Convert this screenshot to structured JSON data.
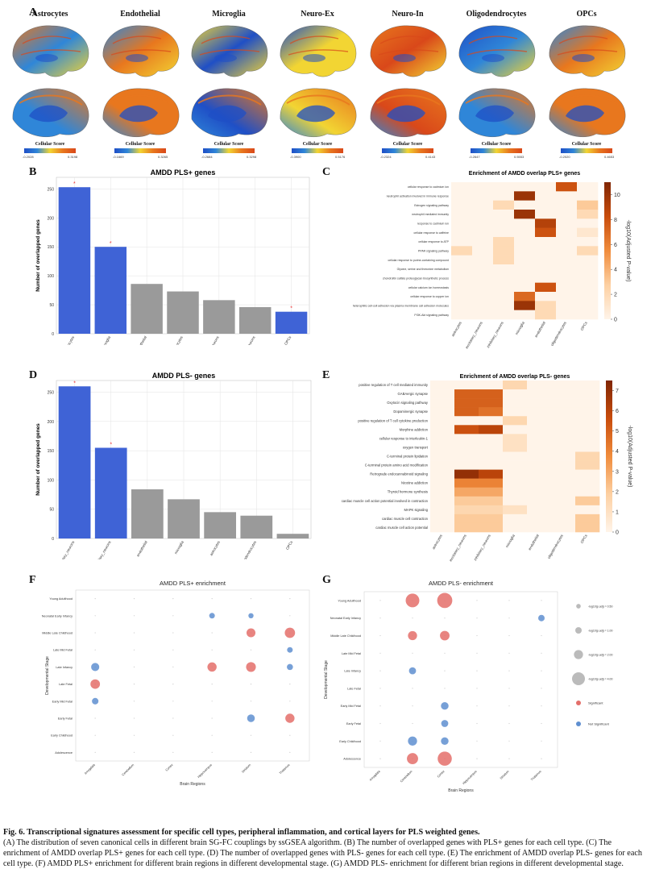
{
  "panel_letters": [
    "A",
    "B",
    "C",
    "D",
    "E",
    "F",
    "G"
  ],
  "panelA": {
    "cells": [
      {
        "name": "Astrocytes",
        "min": "-0.2028",
        "max": "0.3198"
      },
      {
        "name": "Endothelial",
        "min": "-0.1669",
        "max": "0.3265"
      },
      {
        "name": "Microglia",
        "min": "-0.2684",
        "max": "0.3298"
      },
      {
        "name": "Neuro-Ex",
        "min": "-0.3900",
        "max": "0.5176"
      },
      {
        "name": "Neuro-In",
        "min": "-0.2324",
        "max": "0.4143"
      },
      {
        "name": "Oligodendrocytes",
        "min": "-0.2647",
        "max": "0.5553"
      },
      {
        "name": "OPCs",
        "min": "-0.2020",
        "max": "0.4653"
      }
    ],
    "colorbar_label": "Cellular Score",
    "colors": [
      "#1f4fc6",
      "#2f86d8",
      "#f2d533",
      "#e8771e",
      "#d9481a"
    ]
  },
  "chart_data": [
    {
      "id": "B",
      "type": "bar",
      "title": "AMDD PLS+ genes",
      "ylabel": "Number of overlapped genes",
      "categories": [
        "astrocytes",
        "microglia",
        "endothelial",
        "oligodendrocytes",
        "inhibitory_neurons",
        "excitatory_neurons",
        "OPCs"
      ],
      "values": [
        253,
        150,
        86,
        73,
        58,
        46,
        38
      ],
      "significant": [
        true,
        true,
        false,
        false,
        false,
        false,
        true
      ],
      "ylim": [
        0,
        270
      ],
      "yticks": [
        0,
        50,
        100,
        150,
        200,
        250
      ],
      "grid": true
    },
    {
      "id": "D",
      "type": "bar",
      "title": "AMDD PLS- genes",
      "ylabel": "Number of overlapped genes",
      "categories": [
        "excitatory_neurons",
        "inhibitory_neurons",
        "endothelial",
        "microglia",
        "astrocytes",
        "oligodendrocytes",
        "OPCs"
      ],
      "values": [
        260,
        155,
        84,
        67,
        45,
        39,
        8
      ],
      "significant": [
        true,
        true,
        false,
        false,
        false,
        false,
        false
      ],
      "ylim": [
        0,
        270
      ],
      "yticks": [
        0,
        50,
        100,
        150,
        200,
        250
      ],
      "grid": true
    },
    {
      "id": "C",
      "type": "heatmap",
      "title": "Enrichment of AMDD overlap PLS+ genes",
      "colorbar_label": "-log10(Adjusted P-value)",
      "vmin": 0,
      "vmax": 11,
      "cticks": [
        0,
        2,
        4,
        6,
        8,
        10
      ],
      "columns": [
        "astrocytes",
        "excitatory_neurons",
        "inhibitory_neurons",
        "microglia",
        "endothelial",
        "oligodendrocytes",
        "OPCs"
      ],
      "rows": [
        "cellular response to cadmium ion",
        "neutrophil activation involved in immune response",
        "Estrogen signaling pathway",
        "neutrophil mediated immunity",
        "response to cadmium ion",
        "cellular response to caffeine",
        "cellular response to ATP",
        "PPAR signaling pathway",
        "cellular response to purine-containing compound",
        "Glycine, serine and threonine metabolism",
        "chondroitin sulfate proteoglycan biosynthetic process",
        "cellular calcium ion homeostasis",
        "cellular response to copper ion",
        "heterophilic cell-cell adhesion via plasma membrane cell adhesion molecules",
        "PI3K-Akt signaling pathway"
      ],
      "values": [
        [
          0,
          0,
          0,
          0,
          0,
          8,
          0
        ],
        [
          0,
          0,
          0,
          10,
          0,
          0,
          0
        ],
        [
          0,
          0,
          2,
          0,
          0,
          0,
          3
        ],
        [
          0,
          0,
          0,
          10,
          0,
          0,
          2
        ],
        [
          0,
          0,
          0,
          0,
          9,
          0,
          0
        ],
        [
          0,
          0,
          0,
          0,
          8,
          0,
          1
        ],
        [
          0,
          0,
          2,
          0,
          0,
          0,
          0
        ],
        [
          2,
          0,
          2,
          0,
          0,
          0,
          2
        ],
        [
          0,
          0,
          2,
          0,
          0,
          0,
          0
        ],
        [
          0,
          0,
          0,
          0,
          0,
          0,
          0
        ],
        [
          0,
          0,
          0,
          0,
          0,
          0,
          0
        ],
        [
          0,
          0,
          0,
          0,
          8,
          0,
          0
        ],
        [
          0,
          0,
          0,
          7,
          0,
          0,
          0
        ],
        [
          0,
          0,
          0,
          10,
          2,
          0,
          0
        ],
        [
          0,
          0,
          0,
          0,
          2,
          0,
          0
        ]
      ]
    },
    {
      "id": "E",
      "type": "heatmap",
      "title": "Enrichment of AMDD overlap PLS- genes",
      "colorbar_label": "-log10(Adjusted P-value)",
      "vmin": 0,
      "vmax": 7.5,
      "cticks": [
        0,
        1,
        2,
        3,
        4,
        5,
        6,
        7
      ],
      "columns": [
        "astrocytes",
        "excitatory_neurons",
        "inhibitory_neurons",
        "microglia",
        "endothelial",
        "oligodendrocytes",
        "OPCs"
      ],
      "rows": [
        "positive regulation of T cell mediated immunity",
        "GABAergic synapse",
        "Oxytocin signaling pathway",
        "Dopaminergic synapse",
        "positive regulation of T cell cytokine production",
        "Morphine addiction",
        "cellular response to interleukin-1",
        "oxygen transport",
        "C-terminal protein lipidation",
        "C-terminal protein amino acid modification",
        "Retrograde endocannabinoid signaling",
        "Nicotine addiction",
        "Thyroid hormone synthesis",
        "cardiac muscle cell action potential involved in contraction",
        "MAPK signaling",
        "cardiac muscle cell contraction",
        "cardiac muscle cell action potential"
      ],
      "values": [
        [
          0,
          0,
          0,
          1.5,
          0,
          0,
          0
        ],
        [
          0,
          5,
          5,
          0,
          0,
          0,
          0
        ],
        [
          0,
          5,
          5,
          0,
          0,
          0,
          0
        ],
        [
          0,
          5,
          4.5,
          0,
          0,
          0,
          0
        ],
        [
          0,
          0,
          0,
          1.5,
          0,
          0,
          0
        ],
        [
          0,
          5.5,
          6,
          0,
          0,
          0,
          0
        ],
        [
          0,
          0,
          0,
          1,
          0,
          0,
          0
        ],
        [
          0,
          0,
          0,
          1,
          0,
          0,
          0
        ],
        [
          0,
          0,
          0,
          0,
          0,
          0,
          1.5
        ],
        [
          0,
          0,
          0,
          0,
          0,
          0,
          1.5
        ],
        [
          0,
          7,
          6,
          0,
          0,
          0,
          0
        ],
        [
          0,
          4,
          4,
          0,
          0,
          0,
          0
        ],
        [
          0,
          3,
          3,
          0,
          0,
          0,
          0
        ],
        [
          0,
          2,
          2,
          0,
          0,
          0,
          2
        ],
        [
          0,
          1.5,
          1.5,
          1,
          0,
          0,
          0
        ],
        [
          0,
          2,
          2,
          0,
          0,
          0,
          2
        ],
        [
          0,
          2,
          2,
          0,
          0,
          0,
          2
        ]
      ]
    },
    {
      "id": "F",
      "type": "scatter",
      "title": "AMDD PLS+ enrichment",
      "xlabel": "Brain Regions",
      "ylabel": "Developmental Stage",
      "x_categories": [
        "Amygdala",
        "Cerebellum",
        "Cortex",
        "Hippocampus",
        "Striatum",
        "Thalamus"
      ],
      "y_categories": [
        "Young Adulthood",
        "Neonatal Early Infancy",
        "Middle Late Childhood",
        "Late Mid Fetal",
        "Late Infancy",
        "Late Fetal",
        "Early Mid Fetal",
        "Early Fetal",
        "Early Childhood",
        "Adolescence"
      ],
      "points": [
        {
          "x": "Hippocampus",
          "y": "Neonatal Early Infancy",
          "size": 1.2,
          "sig": false
        },
        {
          "x": "Striatum",
          "y": "Neonatal Early Infancy",
          "size": 1.0,
          "sig": false
        },
        {
          "x": "Striatum",
          "y": "Middle Late Childhood",
          "size": 3.0,
          "sig": true
        },
        {
          "x": "Thalamus",
          "y": "Middle Late Childhood",
          "size": 4.0,
          "sig": true
        },
        {
          "x": "Thalamus",
          "y": "Late Mid Fetal",
          "size": 1.2,
          "sig": false
        },
        {
          "x": "Amygdala",
          "y": "Late Infancy",
          "size": 2.5,
          "sig": false
        },
        {
          "x": "Hippocampus",
          "y": "Late Infancy",
          "size": 3.2,
          "sig": true
        },
        {
          "x": "Striatum",
          "y": "Late Infancy",
          "size": 3.6,
          "sig": true
        },
        {
          "x": "Thalamus",
          "y": "Late Infancy",
          "size": 1.4,
          "sig": false
        },
        {
          "x": "Amygdala",
          "y": "Late Fetal",
          "size": 3.4,
          "sig": true
        },
        {
          "x": "Amygdala",
          "y": "Early Mid Fetal",
          "size": 1.6,
          "sig": false
        },
        {
          "x": "Striatum",
          "y": "Early Fetal",
          "size": 2.2,
          "sig": false
        },
        {
          "x": "Thalamus",
          "y": "Early Fetal",
          "size": 3.2,
          "sig": true
        }
      ]
    },
    {
      "id": "G",
      "type": "scatter",
      "title": "AMDD PLS- enrichment",
      "xlabel": "Brain Regions",
      "ylabel": "Developmental Stage",
      "x_categories": [
        "Amygdala",
        "Cerebellum",
        "Cortex",
        "Hippocampus",
        "Striatum",
        "Thalamus"
      ],
      "y_categories": [
        "Young Adulthood",
        "Neonatal Early Infancy",
        "Middle Late Childhood",
        "Late Mid Fetal",
        "Late Infancy",
        "Late Fetal",
        "Early Mid Fetal",
        "Early Fetal",
        "Early Childhood",
        "Adolescence"
      ],
      "points": [
        {
          "x": "Cerebellum",
          "y": "Young Adulthood",
          "size": 4.5,
          "sig": true
        },
        {
          "x": "Cortex",
          "y": "Young Adulthood",
          "size": 5.5,
          "sig": true
        },
        {
          "x": "Thalamus",
          "y": "Neonatal Early Infancy",
          "size": 1.0,
          "sig": false
        },
        {
          "x": "Cerebellum",
          "y": "Middle Late Childhood",
          "size": 2.0,
          "sig": true
        },
        {
          "x": "Cortex",
          "y": "Middle Late Childhood",
          "size": 2.2,
          "sig": true
        },
        {
          "x": "Cerebellum",
          "y": "Late Infancy",
          "size": 1.2,
          "sig": false
        },
        {
          "x": "Cortex",
          "y": "Early Mid Fetal",
          "size": 1.4,
          "sig": false
        },
        {
          "x": "Cortex",
          "y": "Early Fetal",
          "size": 1.2,
          "sig": false
        },
        {
          "x": "Cerebellum",
          "y": "Early Childhood",
          "size": 2.0,
          "sig": false
        },
        {
          "x": "Cortex",
          "y": "Early Childhood",
          "size": 1.4,
          "sig": false
        },
        {
          "x": "Cerebellum",
          "y": "Adolescence",
          "size": 3.0,
          "sig": true
        },
        {
          "x": "Cortex",
          "y": "Adolescence",
          "size": 4.8,
          "sig": true
        }
      ],
      "legend": [
        {
          "label": "-log10(p.adj) = 0.50",
          "size": 0.5
        },
        {
          "label": "-log10(p.adj) = 1.00",
          "size": 1.0
        },
        {
          "label": "-log10(p.adj) = 2.00",
          "size": 2.0
        },
        {
          "label": "-log10(p.adj) = 4.00",
          "size": 4.0
        }
      ],
      "legend_sig": "Significant",
      "legend_nonsig": "Not Significant"
    }
  ],
  "caption": {
    "lead": "Fig. 6. Transcriptional signatures assessment for specific cell types, peripheral inflammation, and cortical layers for PLS weighted genes.",
    "body": "(A) The distribution of seven canonical cells in different brain SG-FC couplings by ssGSEA algorithm. (B) The number of overlapped genes with PLS+ genes for each cell type. (C) The enrichment of AMDD overlap PLS+ genes for each cell type. (D) The number of overlapped genes with PLS- genes for each cell type. (E) The enrichment of AMDD overlap PLS- genes for each cell type. (F) AMDD PLS+ enrichment for different brain regions in different developmental stage. (G) AMDD PLS- enrichment for different brian regions in different developmental stage."
  },
  "colors": {
    "blue_bar": "#3f63d6",
    "gray_bar": "#9a9a9a",
    "sig_dot": "#e46f6a",
    "nonsig_dot": "#5f8fd0"
  }
}
